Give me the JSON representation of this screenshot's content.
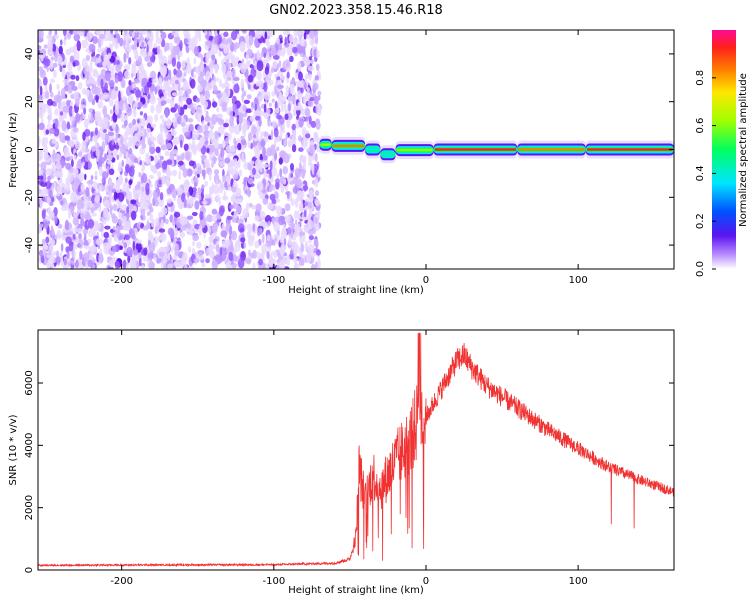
{
  "figure_title": "GN02.2023.358.15.46.R18",
  "colors": {
    "snr_line": "#f03232",
    "spectrogram_noise": "#6a1ee6",
    "frame": "#000000"
  },
  "chart_data": [
    {
      "type": "heatmap",
      "xlabel": "Height of straight line (km)",
      "ylabel": "Frequency (Hz)",
      "xlim": [
        -255,
        163
      ],
      "ylim": [
        -50,
        50
      ],
      "xticks": [
        -200,
        -100,
        0,
        100
      ],
      "yticks": [
        -40,
        -20,
        0,
        20,
        40
      ],
      "x_tick_labels": [
        "-200",
        "-100",
        "0",
        "100"
      ],
      "y_tick_labels": [
        "-40",
        "-20",
        "0",
        "20",
        "40"
      ],
      "noise_region_x": [
        -255,
        -70
      ],
      "tone_segments": [
        {
          "x": [
            -70,
            -62
          ],
          "freq": [
            1,
            3
          ],
          "amplitude": 0.55
        },
        {
          "x": [
            -62,
            -40
          ],
          "freq": [
            1,
            2
          ],
          "amplitude": 0.85
        },
        {
          "x": [
            -40,
            -30
          ],
          "freq": [
            -1,
            1
          ],
          "amplitude": 0.5
        },
        {
          "x": [
            -30,
            -20
          ],
          "freq": [
            -3,
            -1
          ],
          "amplitude": 0.45
        },
        {
          "x": [
            -20,
            5
          ],
          "freq": [
            -1,
            0.5
          ],
          "amplitude": 0.6
        },
        {
          "x": [
            5,
            60
          ],
          "freq": [
            -0.5,
            0.5
          ],
          "amplitude": 0.95
        },
        {
          "x": [
            60,
            105
          ],
          "freq": [
            -0.5,
            0.5
          ],
          "amplitude": 0.8
        },
        {
          "x": [
            105,
            163
          ],
          "freq": [
            -0.5,
            0.5
          ],
          "amplitude": 0.98
        }
      ],
      "colorbar": {
        "label": "Normalized spectral amplitude",
        "range": [
          0,
          1
        ],
        "ticks": [
          0.0,
          0.2,
          0.4,
          0.6,
          0.8
        ],
        "tick_labels": [
          "0.0",
          "0.2",
          "0.4",
          "0.6",
          "0.8"
        ]
      }
    },
    {
      "type": "line",
      "xlabel": "Height of straight line (km)",
      "ylabel": "SNR (10 * v/v)",
      "xlim": [
        -255,
        163
      ],
      "ylim": [
        0,
        7700
      ],
      "xticks": [
        -200,
        -100,
        0,
        100
      ],
      "yticks": [
        0,
        2000,
        4000,
        6000
      ],
      "x_tick_labels": [
        "-200",
        "-100",
        "0",
        "100"
      ],
      "y_tick_labels": [
        "0",
        "2000",
        "4000",
        "6000"
      ],
      "series": [
        {
          "x": [
            -255,
            -200,
            -150,
            -100,
            -60,
            -50,
            -46,
            -44,
            -40,
            -35,
            -30,
            -20,
            -10,
            -4,
            0,
            10,
            20,
            25,
            30,
            40,
            60,
            80,
            100,
            120,
            140,
            163
          ],
          "y": [
            150,
            160,
            165,
            170,
            220,
            350,
            1100,
            3300,
            2200,
            3100,
            2600,
            3500,
            4200,
            5000,
            4900,
            5800,
            6700,
            6900,
            6500,
            5900,
            5200,
            4500,
            3900,
            3300,
            2900,
            2500
          ]
        }
      ]
    }
  ]
}
